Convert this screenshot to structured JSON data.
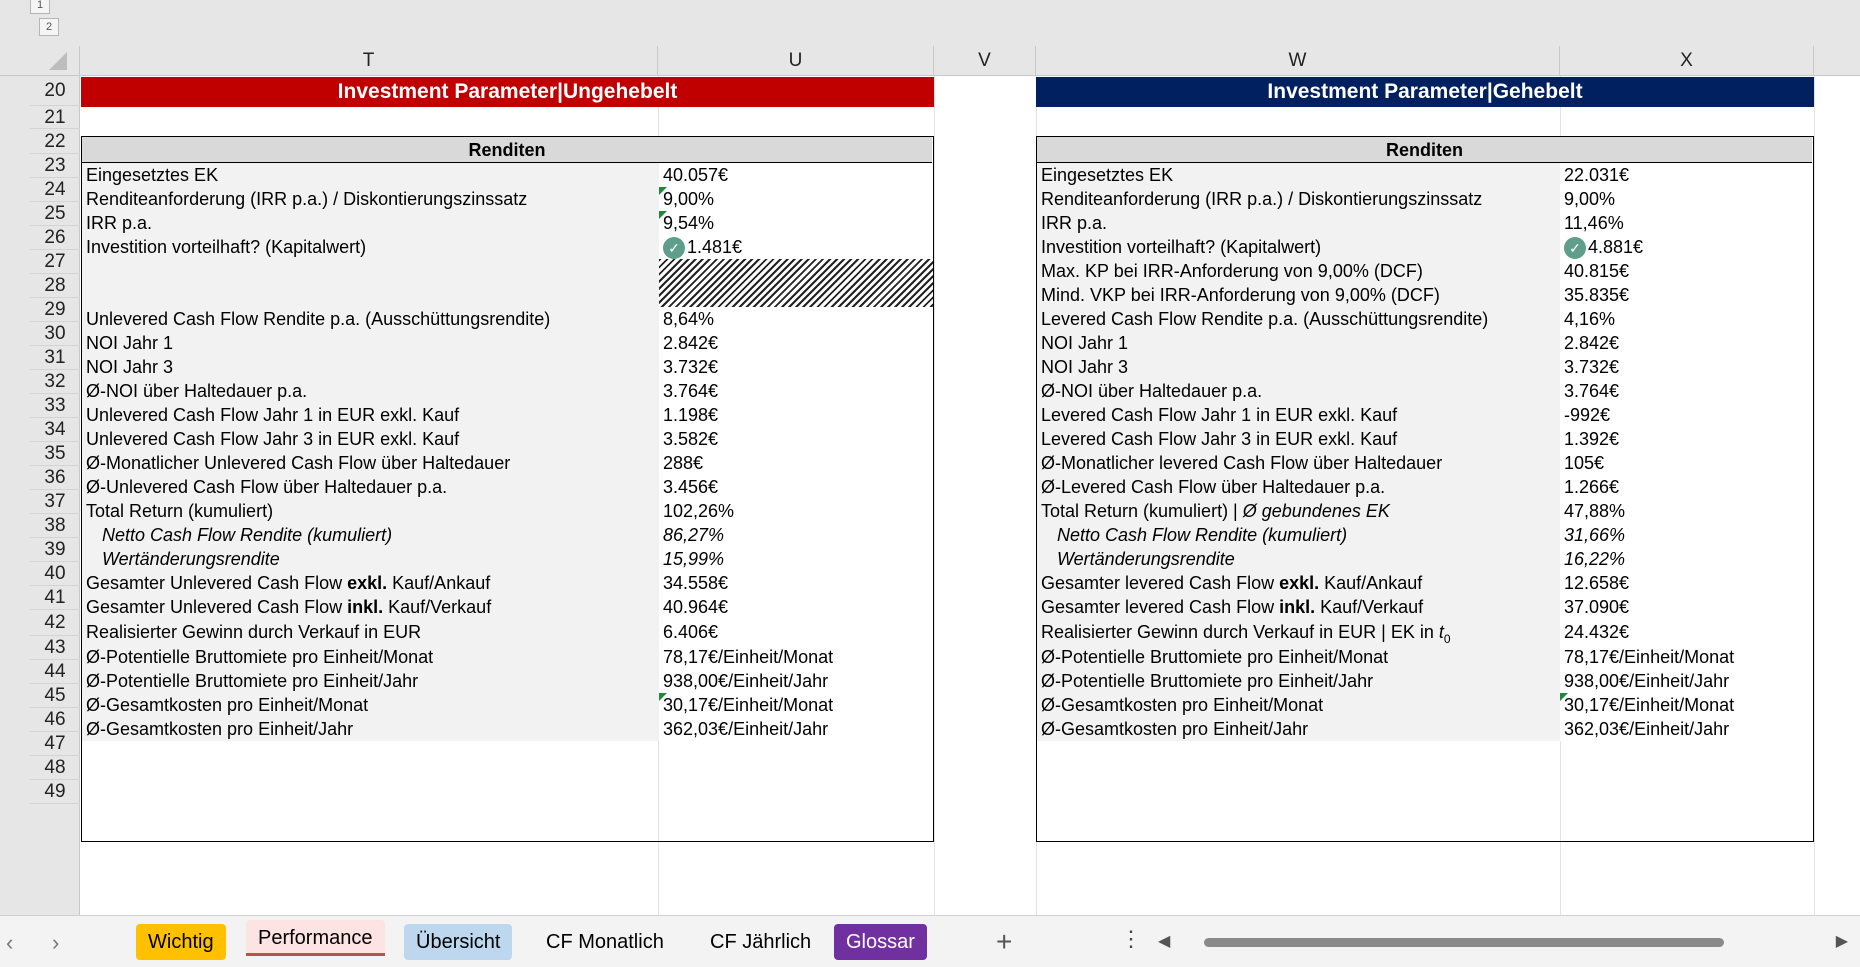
{
  "outline": {
    "level1": "1",
    "level2": "2",
    "rowlevel": "2"
  },
  "columns": [
    "T",
    "U",
    "V",
    "W",
    "X"
  ],
  "rows": [
    "20",
    "21",
    "22",
    "23",
    "24",
    "25",
    "26",
    "27",
    "28",
    "29",
    "30",
    "31",
    "32",
    "33",
    "34",
    "35",
    "36",
    "37",
    "38",
    "39",
    "40",
    "41",
    "42",
    "43",
    "44",
    "45",
    "46",
    "47",
    "48",
    "49"
  ],
  "colors": {
    "banner_left": "#c00000",
    "banner_right": "#002060",
    "tab_wichtig": "#ffc000",
    "tab_performance": "#f4b8b4",
    "tab_uebersicht": "#bdd7ee",
    "tab_glossar": "#7030a0"
  },
  "left": {
    "banner": "Investment Parameter|Ungehebelt",
    "header": "Renditen",
    "rows": [
      {
        "label": "Eingesetztes EK",
        "value": "40.057€"
      },
      {
        "label": "Renditeanforderung (IRR p.a.) / Diskontierungszinssatz",
        "value": "9,00%"
      },
      {
        "label": "IRR p.a.",
        "value": "9,54%"
      },
      {
        "label": "Investition vorteilhaft? (Kapitalwert)",
        "value": "1.481€"
      },
      {
        "label": "",
        "value": ""
      },
      {
        "label": "",
        "value": ""
      },
      {
        "label": "Unlevered Cash Flow Rendite p.a. (Ausschüttungsrendite)",
        "value": "8,64%"
      },
      {
        "label": "NOI Jahr 1",
        "value": "2.842€"
      },
      {
        "label": "NOI Jahr 3",
        "value": "3.732€"
      },
      {
        "label": "Ø-NOI über Haltedauer p.a.",
        "value": "3.764€"
      },
      {
        "label": "Unlevered Cash Flow Jahr 1 in EUR exkl. Kauf",
        "value": "1.198€"
      },
      {
        "label": "Unlevered Cash Flow Jahr 3 in EUR exkl. Kauf",
        "value": "3.582€"
      },
      {
        "label": "Ø-Monatlicher Unlevered Cash Flow über Haltedauer",
        "value": "288€"
      },
      {
        "label": "Ø-Unlevered Cash Flow über Haltedauer p.a.",
        "value": "3.456€"
      },
      {
        "label": "Total Return (kumuliert)",
        "value": "102,26%"
      },
      {
        "label": "Netto Cash Flow Rendite (kumuliert)",
        "value": "86,27%"
      },
      {
        "label": "Wertänderungsrendite",
        "value": "15,99%"
      },
      {
        "label_a": "Gesamter Unlevered Cash Flow ",
        "label_b": "exkl.",
        "label_c": " Kauf/Ankauf",
        "value": "34.558€"
      },
      {
        "label_a": "Gesamter Unlevered Cash Flow ",
        "label_b": "inkl.",
        "label_c": " Kauf/Verkauf",
        "value": "40.964€"
      },
      {
        "label": "Realisierter Gewinn durch Verkauf in EUR",
        "value": "6.406€"
      },
      {
        "label": "Ø-Potentielle Bruttomiete pro Einheit/Monat",
        "value": "78,17€/Einheit/Monat"
      },
      {
        "label": "Ø-Potentielle Bruttomiete pro Einheit/Jahr",
        "value": "938,00€/Einheit/Jahr"
      },
      {
        "label": "Ø-Gesamtkosten pro Einheit/Monat",
        "value": "30,17€/Einheit/Monat"
      },
      {
        "label": "Ø-Gesamtkosten pro Einheit/Jahr",
        "value": "362,03€/Einheit/Jahr"
      }
    ]
  },
  "right": {
    "banner": "Investment Parameter|Gehebelt",
    "header": "Renditen",
    "rows": [
      {
        "label": "Eingesetztes EK",
        "value": "22.031€"
      },
      {
        "label": "Renditeanforderung (IRR p.a.) / Diskontierungszinssatz",
        "value": "9,00%"
      },
      {
        "label": "IRR p.a.",
        "value": "11,46%"
      },
      {
        "label": "Investition vorteilhaft? (Kapitalwert)",
        "value": "4.881€"
      },
      {
        "label": "Max. KP bei IRR-Anforderung von 9,00% (DCF)",
        "value": "40.815€"
      },
      {
        "label": "Mind. VKP bei IRR-Anforderung von 9,00% (DCF)",
        "value": "35.835€"
      },
      {
        "label": "Levered Cash Flow Rendite p.a. (Ausschüttungsrendite)",
        "value": "4,16%"
      },
      {
        "label": "NOI Jahr 1",
        "value": "2.842€"
      },
      {
        "label": "NOI Jahr 3",
        "value": "3.732€"
      },
      {
        "label": "Ø-NOI über Haltedauer p.a.",
        "value": "3.764€"
      },
      {
        "label": "Levered Cash Flow Jahr 1 in EUR exkl. Kauf",
        "value": "-992€"
      },
      {
        "label": "Levered Cash Flow Jahr 3 in EUR exkl. Kauf",
        "value": "1.392€"
      },
      {
        "label": "Ø-Monatlicher levered Cash Flow über Haltedauer",
        "value": "105€"
      },
      {
        "label": "Ø-Levered Cash Flow über Haltedauer p.a.",
        "value": "1.266€"
      },
      {
        "label_a": "Total Return (kumuliert) | ",
        "label_i": "Ø gebundenes EK",
        "value": "47,88%"
      },
      {
        "label": "Netto Cash Flow Rendite (kumuliert)",
        "value": "31,66%"
      },
      {
        "label": "Wertänderungsrendite",
        "value": "16,22%"
      },
      {
        "label_a": "Gesamter levered Cash Flow ",
        "label_b": "exkl.",
        "label_c": " Kauf/Ankauf",
        "value": "12.658€"
      },
      {
        "label_a": "Gesamter levered Cash Flow ",
        "label_b": "inkl.",
        "label_c": " Kauf/Verkauf",
        "value": "37.090€"
      },
      {
        "label_a": "Realisierter Gewinn durch Verkauf in EUR | EK in ",
        "label_t": "t",
        "label_sub": "0",
        "value": "24.432€"
      },
      {
        "label": "Ø-Potentielle Bruttomiete pro Einheit/Monat",
        "value": "78,17€/Einheit/Monat"
      },
      {
        "label": "Ø-Potentielle Bruttomiete pro Einheit/Jahr",
        "value": "938,00€/Einheit/Jahr"
      },
      {
        "label": "Ø-Gesamtkosten pro Einheit/Monat",
        "value": "30,17€/Einheit/Monat"
      },
      {
        "label": "Ø-Gesamtkosten pro Einheit/Jahr",
        "value": "362,03€/Einheit/Jahr"
      }
    ]
  },
  "tabs": [
    {
      "label": "Wichtig"
    },
    {
      "label": "Performance"
    },
    {
      "label": "Übersicht"
    },
    {
      "label": "CF Monatlich"
    },
    {
      "label": "CF Jährlich"
    },
    {
      "label": "Glossar"
    }
  ],
  "icons": {
    "check": "check-circle-icon",
    "add": "plus-icon",
    "more": "more-vertical-icon"
  }
}
